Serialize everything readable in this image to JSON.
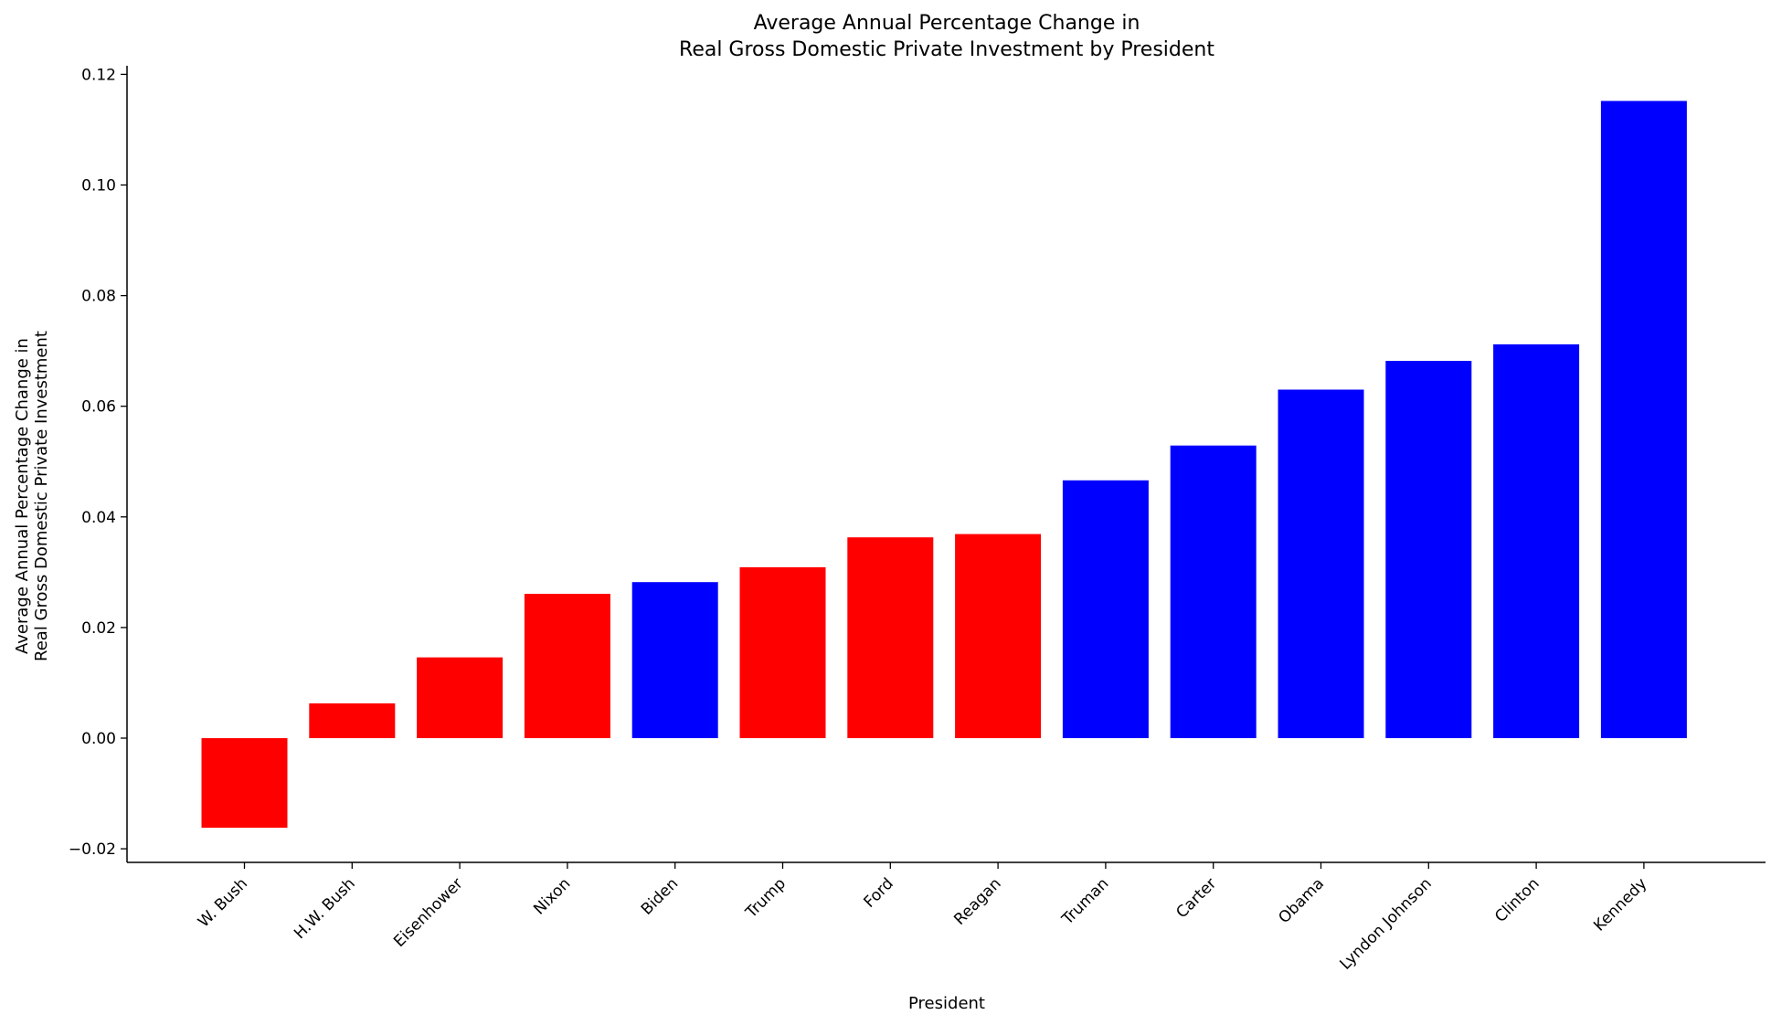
{
  "chart_data": {
    "type": "bar",
    "title_lines": [
      "Average Annual Percentage Change in",
      "Real Gross Domestic Private Investment by President"
    ],
    "xlabel": "President",
    "ylabel_lines": [
      "Average Annual Percentage Change in",
      "Real Gross Domestic Private Investment"
    ],
    "ylim": [
      -0.0225,
      0.1225
    ],
    "yticks": [
      -0.02,
      0.0,
      0.02,
      0.04,
      0.06,
      0.08,
      0.1,
      0.12
    ],
    "ytick_labels": [
      "−0.02",
      "0.00",
      "0.02",
      "0.04",
      "0.06",
      "0.08",
      "0.10",
      "0.12"
    ],
    "categories": [
      "W. Bush",
      "H.W. Bush",
      "Eisenhower",
      "Nixon",
      "Biden",
      "Trump",
      "Ford",
      "Reagan",
      "Truman",
      "Carter",
      "Obama",
      "Lyndon Johnson",
      "Clinton",
      "Kennedy"
    ],
    "values": [
      -0.0162,
      0.0063,
      0.0146,
      0.0261,
      0.0282,
      0.0309,
      0.0363,
      0.0369,
      0.0466,
      0.0529,
      0.063,
      0.0682,
      0.0712,
      0.1152
    ],
    "colors": [
      "#ff0000",
      "#ff0000",
      "#ff0000",
      "#ff0000",
      "#0000ff",
      "#ff0000",
      "#ff0000",
      "#ff0000",
      "#0000ff",
      "#0000ff",
      "#0000ff",
      "#0000ff",
      "#0000ff",
      "#0000ff"
    ],
    "grid": false,
    "legend": "none"
  }
}
